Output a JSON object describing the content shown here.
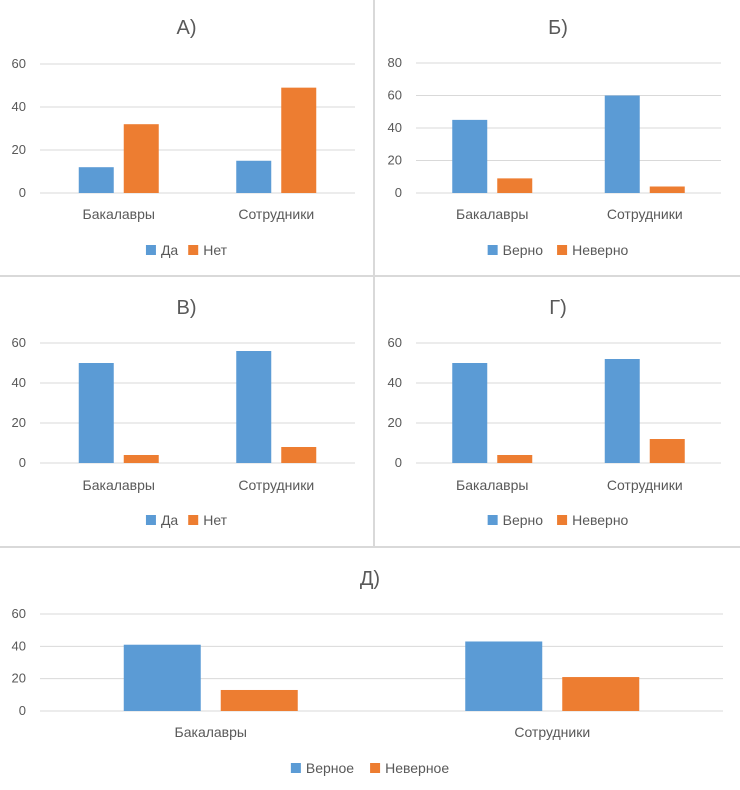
{
  "colors": {
    "blue": "#5b9bd5",
    "orange": "#ed7d31",
    "grid": "#d9d9d9",
    "text": "#595959"
  },
  "chart_data": [
    {
      "id": "A",
      "type": "bar",
      "title": "А)",
      "categories": [
        "Бакалавры",
        "Сотрудники"
      ],
      "yticks": [
        "0",
        "20",
        "40",
        "60"
      ],
      "ylim": [
        0,
        60
      ],
      "series": [
        {
          "name": "Да",
          "values": [
            12,
            15
          ]
        },
        {
          "name": "Нет",
          "values": [
            32,
            49
          ]
        }
      ]
    },
    {
      "id": "B",
      "type": "bar",
      "title": "Б)",
      "categories": [
        "Бакалавры",
        "Сотрудники"
      ],
      "yticks": [
        "0",
        "20",
        "40",
        "60",
        "80"
      ],
      "ylim": [
        0,
        80
      ],
      "series": [
        {
          "name": "Верно",
          "values": [
            45,
            60
          ]
        },
        {
          "name": "Неверно",
          "values": [
            9,
            4
          ]
        }
      ]
    },
    {
      "id": "C",
      "type": "bar",
      "title": "В)",
      "categories": [
        "Бакалавры",
        "Сотрудники"
      ],
      "yticks": [
        "0",
        "20",
        "40",
        "60"
      ],
      "ylim": [
        0,
        60
      ],
      "series": [
        {
          "name": "Да",
          "values": [
            50,
            56
          ]
        },
        {
          "name": "Нет",
          "values": [
            4,
            8
          ]
        }
      ]
    },
    {
      "id": "D",
      "type": "bar",
      "title": "Г)",
      "categories": [
        "Бакалавры",
        "Сотрудники"
      ],
      "yticks": [
        "0",
        "20",
        "40",
        "60"
      ],
      "ylim": [
        0,
        60
      ],
      "series": [
        {
          "name": "Верно",
          "values": [
            50,
            52
          ]
        },
        {
          "name": "Неверно",
          "values": [
            4,
            12
          ]
        }
      ]
    },
    {
      "id": "E",
      "type": "bar",
      "title": "Д)",
      "categories": [
        "Бакалавры",
        "Сотрудники"
      ],
      "yticks": [
        "0",
        "20",
        "40",
        "60"
      ],
      "ylim": [
        0,
        60
      ],
      "series": [
        {
          "name": "Верное",
          "values": [
            41,
            43
          ]
        },
        {
          "name": "Неверное",
          "values": [
            13,
            21
          ]
        }
      ]
    }
  ]
}
